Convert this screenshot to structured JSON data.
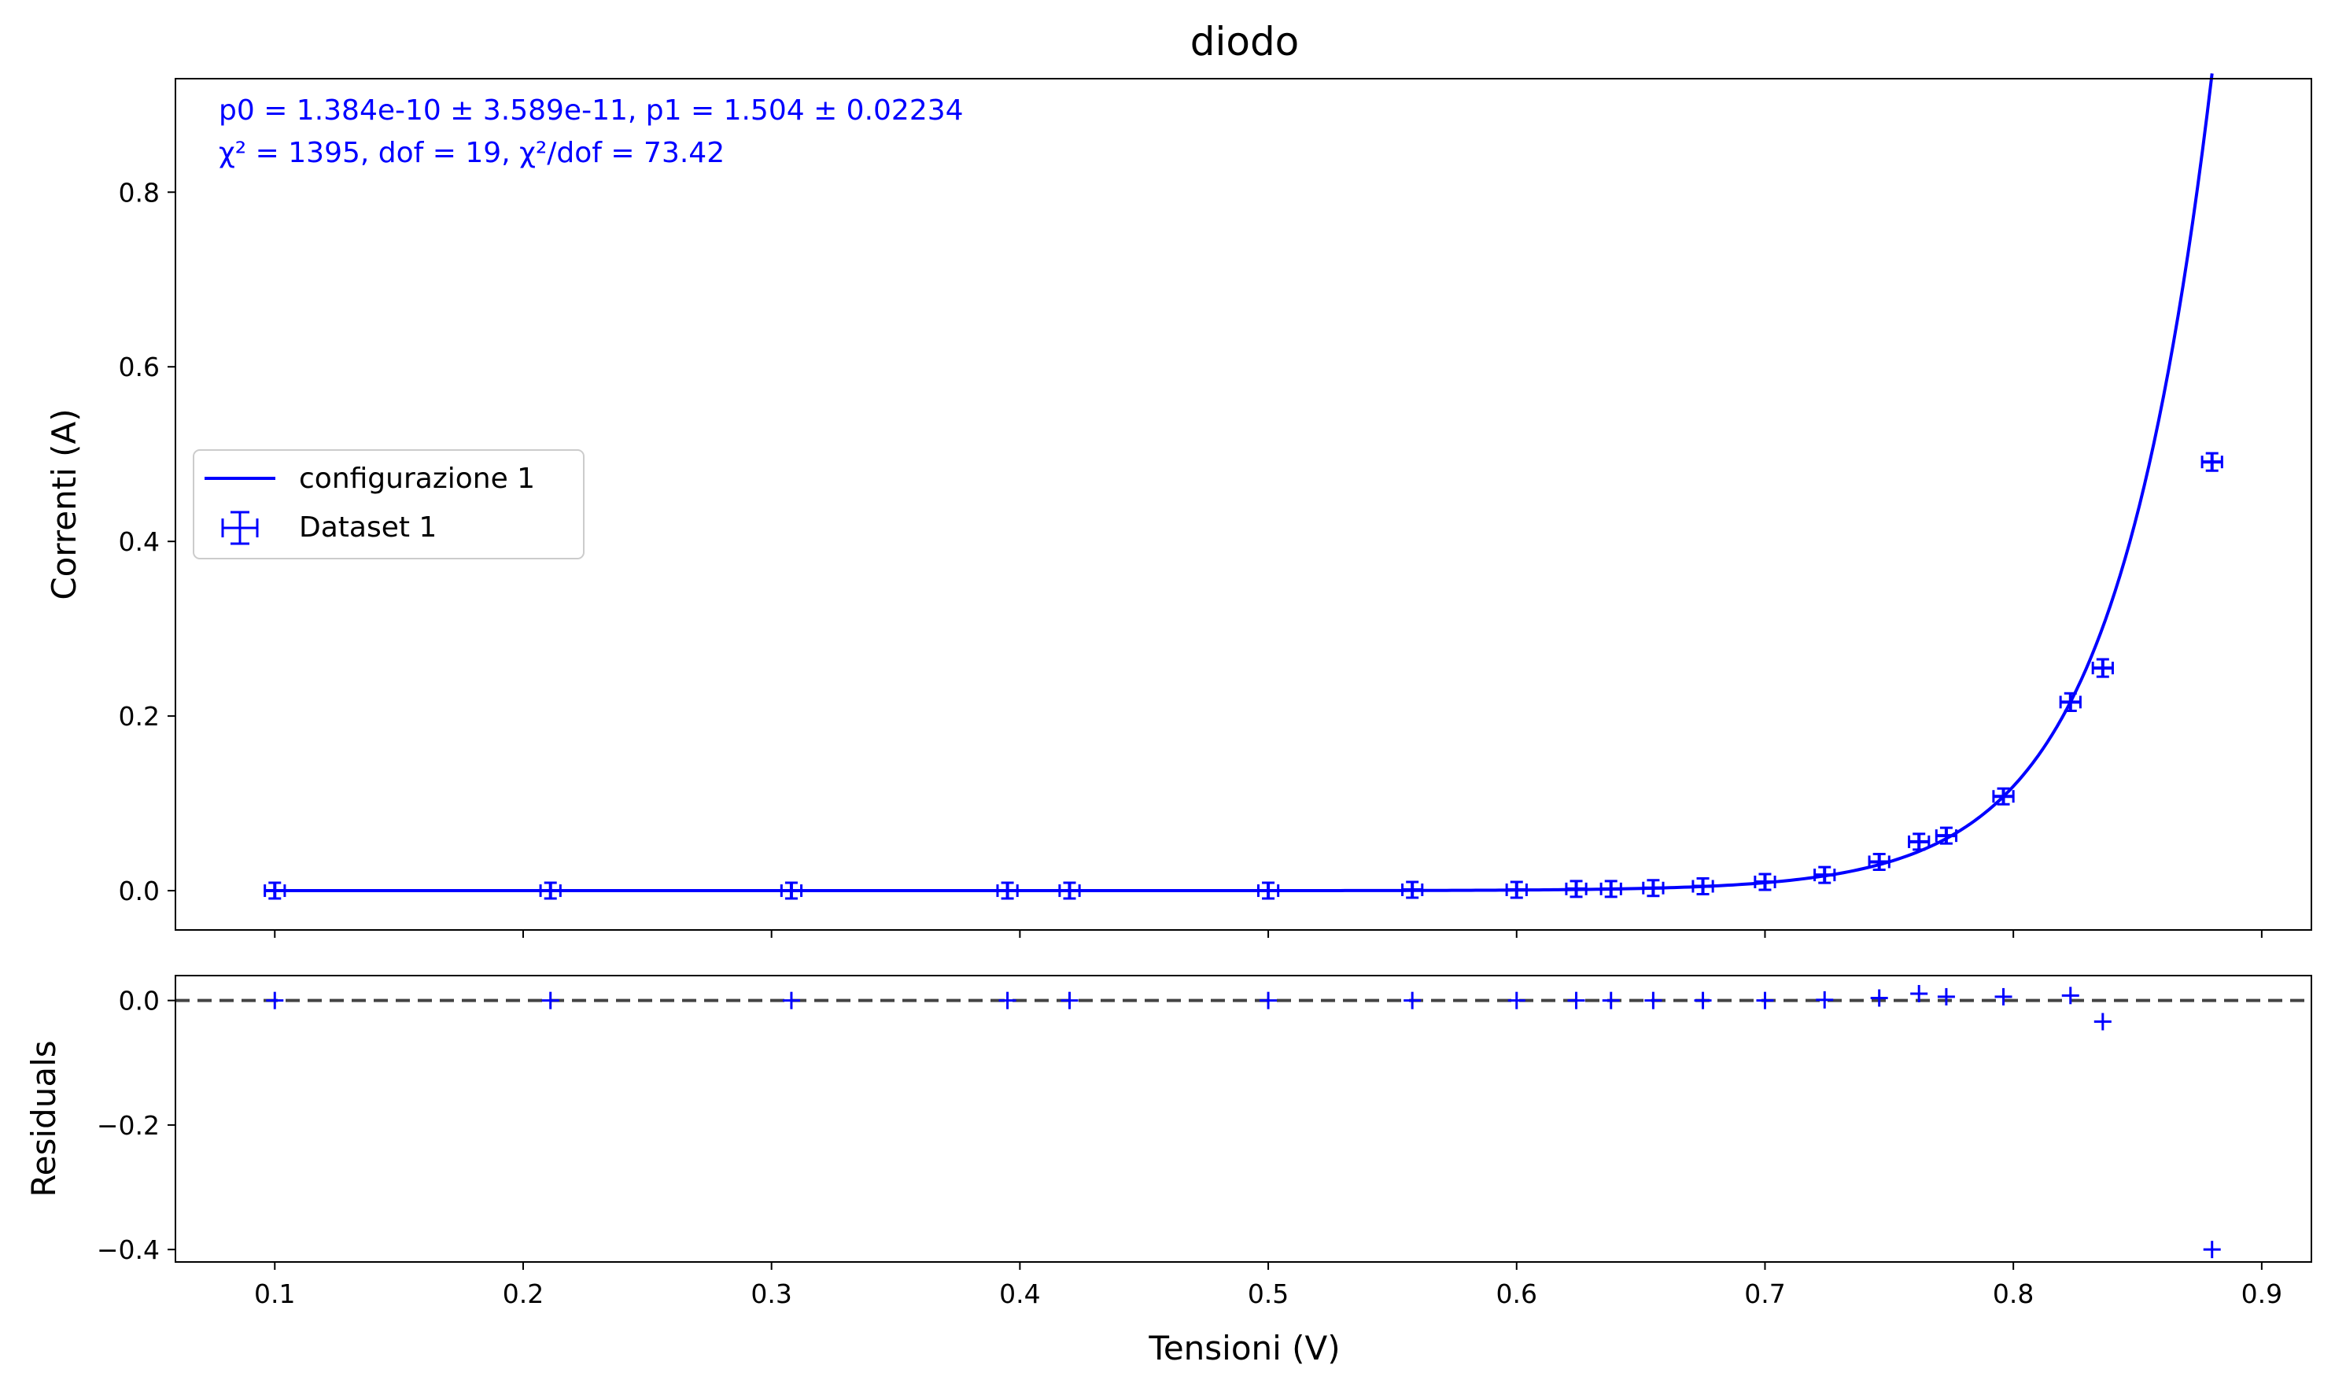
{
  "chart_data": [
    {
      "type": "scatter",
      "panel": "main",
      "title": "diodo",
      "xlabel": "",
      "ylabel": "Correnti (A)",
      "xlim": [
        0.06,
        0.92
      ],
      "ylim": [
        -0.045,
        0.93
      ],
      "yticks": [
        "0.0",
        "0.2",
        "0.4",
        "0.6",
        "0.8"
      ],
      "annotations": [
        "p0 = 1.384e-10 ± 3.589e-11, p1 = 1.504 ± 0.02234",
        "χ² = 1395, dof = 19, χ²/dof = 73.42"
      ],
      "legend": {
        "placement": "center-left",
        "entries": [
          "configurazione 1",
          "Dataset 1"
        ]
      },
      "series": [
        {
          "name": "Dataset 1",
          "kind": "errorbar",
          "color": "#0000ff",
          "x": [
            0.1,
            0.211,
            0.308,
            0.395,
            0.42,
            0.5,
            0.558,
            0.6,
            0.624,
            0.638,
            0.655,
            0.675,
            0.7,
            0.724,
            0.746,
            0.762,
            0.773,
            0.796,
            0.823,
            0.836,
            0.88
          ],
          "y": [
            0.0,
            0.0,
            0.0,
            0.0,
            0.0,
            0.0,
            0.001,
            0.001,
            0.002,
            0.002,
            0.003,
            0.005,
            0.01,
            0.018,
            0.033,
            0.056,
            0.063,
            0.108,
            0.216,
            0.255,
            0.491
          ],
          "xerr": 0.004,
          "yerr": [
            0.002,
            0.002,
            0.002,
            0.002,
            0.002,
            0.002,
            0.002,
            0.002,
            0.002,
            0.002,
            0.002,
            0.002,
            0.003,
            0.004,
            0.005,
            0.006,
            0.006,
            0.007,
            0.01,
            0.01,
            0.01
          ]
        },
        {
          "name": "configurazione 1",
          "kind": "line",
          "color": "#0000ff",
          "model": "p0 * (exp(x / (p1 * 0.02585)) - 1)",
          "p0": 1.384e-10,
          "p1": 1.504,
          "x_range": [
            0.1,
            0.88
          ]
        }
      ]
    },
    {
      "type": "scatter",
      "panel": "residuals",
      "xlabel": "Tensioni (V)",
      "ylabel": "Residuals",
      "xlim": [
        0.06,
        0.92
      ],
      "ylim": [
        -0.42,
        0.04
      ],
      "xticks": [
        "0.1",
        "0.2",
        "0.3",
        "0.4",
        "0.5",
        "0.6",
        "0.7",
        "0.8",
        "0.9"
      ],
      "yticks": [
        "0.0",
        "−0.2",
        "−0.4"
      ],
      "zero_line": {
        "y": 0,
        "style": "dashed",
        "color": "#444444"
      },
      "series": [
        {
          "kind": "marker",
          "color": "#0000ff",
          "x": [
            0.1,
            0.211,
            0.308,
            0.395,
            0.42,
            0.5,
            0.558,
            0.6,
            0.624,
            0.638,
            0.655,
            0.675,
            0.7,
            0.724,
            0.746,
            0.762,
            0.773,
            0.796,
            0.823,
            0.836,
            0.88
          ],
          "y": [
            0.0,
            0.0,
            0.0,
            0.0,
            0.0,
            0.0,
            0.0,
            0.0,
            0.0,
            0.0,
            0.0,
            0.0,
            0.0,
            0.001,
            0.004,
            0.011,
            0.006,
            0.006,
            0.008,
            -0.034,
            -0.4
          ]
        }
      ]
    }
  ]
}
